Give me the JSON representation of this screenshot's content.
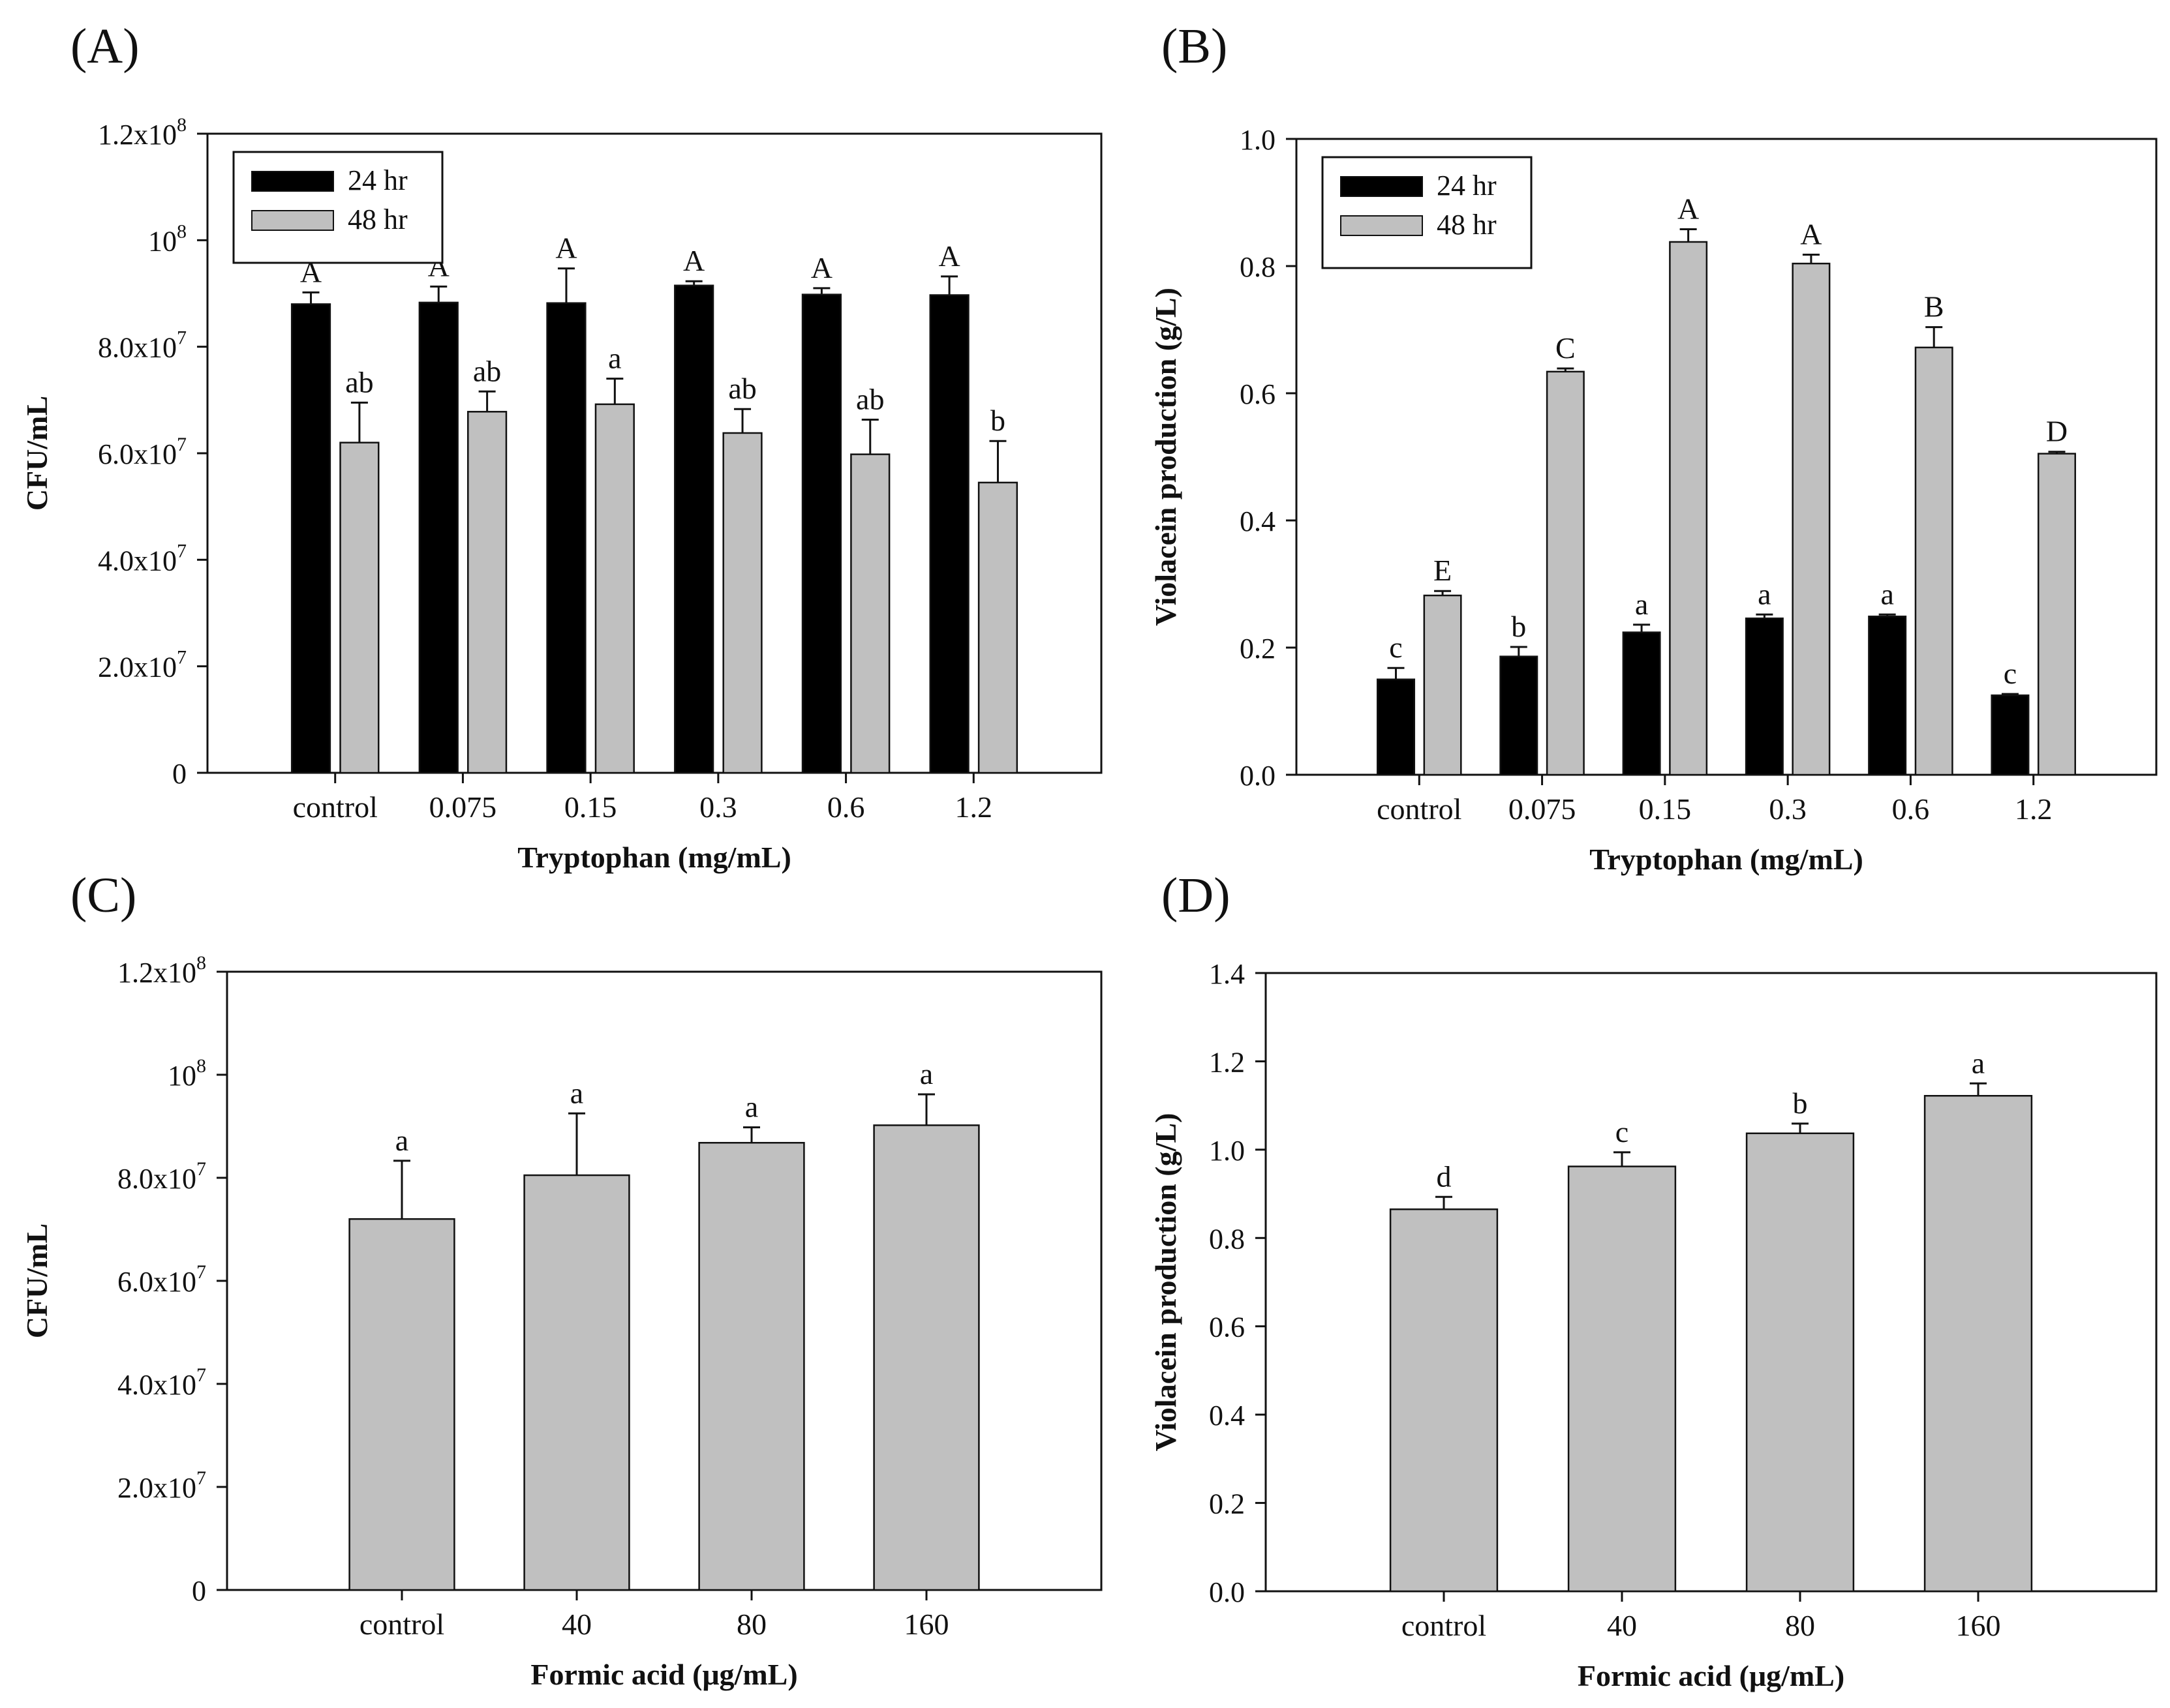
{
  "chart_data": [
    {
      "panel": "(A)",
      "type": "bar",
      "xlabel": "Tryptophan (mg/mL)",
      "ylabel": "CFU/mL",
      "ylim": [
        0,
        120000000
      ],
      "yticks": [
        {
          "value": 0,
          "base": "0",
          "exp": ""
        },
        {
          "value": 20000000,
          "base": "2.0x10",
          "exp": "7"
        },
        {
          "value": 40000000,
          "base": "4.0x10",
          "exp": "7"
        },
        {
          "value": 60000000,
          "base": "6.0x10",
          "exp": "7"
        },
        {
          "value": 80000000,
          "base": "8.0x10",
          "exp": "7"
        },
        {
          "value": 100000000,
          "base": "10",
          "exp": "8"
        },
        {
          "value": 120000000,
          "base": "1.2x10",
          "exp": "8"
        }
      ],
      "categories": [
        "control",
        "0.075",
        "0.15",
        "0.3",
        "0.6",
        "1.2"
      ],
      "legend": "top-left",
      "series": [
        {
          "name": "24 hr",
          "color": "#000000",
          "values": [
            88000000,
            88300000,
            88200000,
            91500000,
            89800000,
            89700000
          ],
          "errors": [
            2200000,
            3000000,
            6500000,
            800000,
            1200000,
            3500000
          ],
          "labels": [
            "A",
            "A",
            "A",
            "A",
            "A",
            "A"
          ]
        },
        {
          "name": "48 hr",
          "color": "#c0c0c0",
          "values": [
            62000000,
            67800000,
            69200000,
            63800000,
            59800000,
            54500000
          ],
          "errors": [
            7500000,
            3800000,
            4800000,
            4500000,
            6500000,
            7800000
          ],
          "labels": [
            "ab",
            "ab",
            "a",
            "ab",
            "ab",
            "b"
          ]
        }
      ]
    },
    {
      "panel": "(B)",
      "type": "bar",
      "xlabel": "Tryptophan (mg/mL)",
      "ylabel": "Violacein production (g/L)",
      "ylim": [
        0,
        1.0
      ],
      "yticks": [
        {
          "value": 0,
          "base": "0.0",
          "exp": ""
        },
        {
          "value": 0.2,
          "base": "0.2",
          "exp": ""
        },
        {
          "value": 0.4,
          "base": "0.4",
          "exp": ""
        },
        {
          "value": 0.6,
          "base": "0.6",
          "exp": ""
        },
        {
          "value": 0.8,
          "base": "0.8",
          "exp": ""
        },
        {
          "value": 1.0,
          "base": "1.0",
          "exp": ""
        }
      ],
      "categories": [
        "control",
        "0.075",
        "0.15",
        "0.3",
        "0.6",
        "1.2"
      ],
      "legend": "top-left",
      "series": [
        {
          "name": "24 hr",
          "color": "#000000",
          "values": [
            0.15,
            0.186,
            0.224,
            0.246,
            0.249,
            0.125
          ],
          "errors": [
            0.018,
            0.015,
            0.012,
            0.006,
            0.003,
            0.002
          ],
          "labels": [
            "c",
            "b",
            "a",
            "a",
            "a",
            "c"
          ]
        },
        {
          "name": "48 hr",
          "color": "#c0c0c0",
          "values": [
            0.282,
            0.634,
            0.838,
            0.804,
            0.672,
            0.505
          ],
          "errors": [
            0.007,
            0.005,
            0.02,
            0.014,
            0.032,
            0.003
          ],
          "labels": [
            "E",
            "C",
            "A",
            "A",
            "B",
            "D"
          ]
        }
      ]
    },
    {
      "panel": "(C)",
      "type": "bar",
      "xlabel": "Formic acid (μg/mL)",
      "ylabel": "CFU/mL",
      "ylim": [
        0,
        120000000
      ],
      "yticks": [
        {
          "value": 0,
          "base": "0",
          "exp": ""
        },
        {
          "value": 20000000,
          "base": "2.0x10",
          "exp": "7"
        },
        {
          "value": 40000000,
          "base": "4.0x10",
          "exp": "7"
        },
        {
          "value": 60000000,
          "base": "6.0x10",
          "exp": "7"
        },
        {
          "value": 80000000,
          "base": "8.0x10",
          "exp": "7"
        },
        {
          "value": 100000000,
          "base": "10",
          "exp": "8"
        },
        {
          "value": 120000000,
          "base": "1.2x10",
          "exp": "8"
        }
      ],
      "categories": [
        "control",
        "40",
        "80",
        "160"
      ],
      "legend": "none",
      "series": [
        {
          "name": "",
          "color": "#c0c0c0",
          "values": [
            72000000,
            80500000,
            86800000,
            90200000
          ],
          "errors": [
            11300000,
            12000000,
            3000000,
            6000000
          ],
          "labels": [
            "a",
            "a",
            "a",
            "a"
          ]
        }
      ]
    },
    {
      "panel": "(D)",
      "type": "bar",
      "xlabel": "Formic acid (μg/mL)",
      "ylabel": "Violacein production (g/L)",
      "ylim": [
        0,
        1.4
      ],
      "yticks": [
        {
          "value": 0,
          "base": "0.0",
          "exp": ""
        },
        {
          "value": 0.2,
          "base": "0.2",
          "exp": ""
        },
        {
          "value": 0.4,
          "base": "0.4",
          "exp": ""
        },
        {
          "value": 0.6,
          "base": "0.6",
          "exp": ""
        },
        {
          "value": 0.8,
          "base": "0.8",
          "exp": ""
        },
        {
          "value": 1.0,
          "base": "1.0",
          "exp": ""
        },
        {
          "value": 1.2,
          "base": "1.2",
          "exp": ""
        },
        {
          "value": 1.4,
          "base": "1.4",
          "exp": ""
        }
      ],
      "categories": [
        "control",
        "40",
        "80",
        "160"
      ],
      "legend": "none",
      "series": [
        {
          "name": "",
          "color": "#c0c0c0",
          "values": [
            0.865,
            0.962,
            1.037,
            1.122
          ],
          "errors": [
            0.028,
            0.032,
            0.022,
            0.028
          ],
          "labels": [
            "d",
            "c",
            "b",
            "a"
          ]
        }
      ]
    }
  ]
}
